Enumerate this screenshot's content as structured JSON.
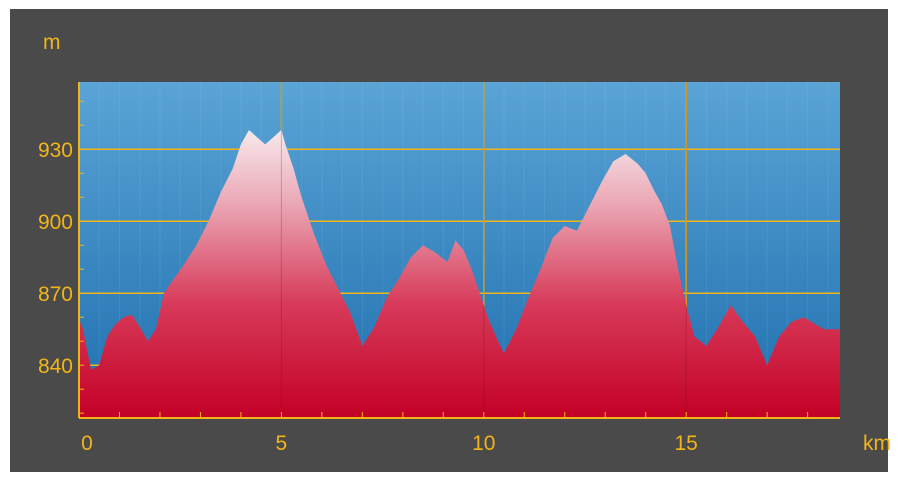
{
  "chart_data": {
    "type": "area",
    "title": "",
    "xlabel": "km",
    "ylabel": "m",
    "xlim": [
      0,
      18.8
    ],
    "ylim": [
      818,
      958
    ],
    "x_ticks": [
      0,
      5,
      10,
      15
    ],
    "x_tick_labels": [
      "0",
      "5",
      "10",
      "15"
    ],
    "y_ticks": [
      840,
      870,
      900,
      930
    ],
    "y_tick_labels": [
      "840",
      "870",
      "900",
      "930"
    ],
    "grid": true,
    "legend": "none",
    "series": [
      {
        "x": [
          0,
          0.1,
          0.3,
          0.5,
          0.7,
          0.9,
          1.1,
          1.3,
          1.5,
          1.7,
          1.9,
          2.1,
          2.3,
          2.6,
          2.9,
          3.2,
          3.5,
          3.8,
          4.0,
          4.2,
          4.4,
          4.6,
          4.8,
          5.0,
          5.1,
          5.3,
          5.5,
          5.8,
          6.1,
          6.4,
          6.7,
          7.0,
          7.3,
          7.6,
          7.9,
          8.2,
          8.5,
          8.8,
          9.1,
          9.3,
          9.5,
          9.7,
          9.9,
          10.1,
          10.3,
          10.5,
          10.8,
          11.1,
          11.4,
          11.7,
          12.0,
          12.3,
          12.6,
          12.9,
          13.2,
          13.5,
          13.8,
          14.0,
          14.2,
          14.4,
          14.6,
          14.8,
          15.0,
          15.2,
          15.5,
          15.8,
          16.1,
          16.4,
          16.7,
          17.0,
          17.3,
          17.6,
          17.9,
          18.2,
          18.4,
          18.6,
          18.8
        ],
        "y": [
          859,
          855,
          838,
          840,
          852,
          857,
          860,
          861,
          856,
          850,
          855,
          870,
          875,
          882,
          890,
          900,
          912,
          922,
          932,
          938,
          935,
          932,
          935,
          938,
          932,
          922,
          910,
          895,
          882,
          872,
          862,
          848,
          856,
          868,
          876,
          885,
          890,
          887,
          883,
          892,
          888,
          880,
          870,
          860,
          852,
          845,
          855,
          868,
          880,
          893,
          898,
          896,
          906,
          916,
          925,
          928,
          924,
          920,
          913,
          907,
          898,
          880,
          865,
          852,
          848,
          856,
          865,
          858,
          852,
          840,
          852,
          858,
          860,
          857,
          855,
          855,
          855
        ]
      }
    ]
  }
}
